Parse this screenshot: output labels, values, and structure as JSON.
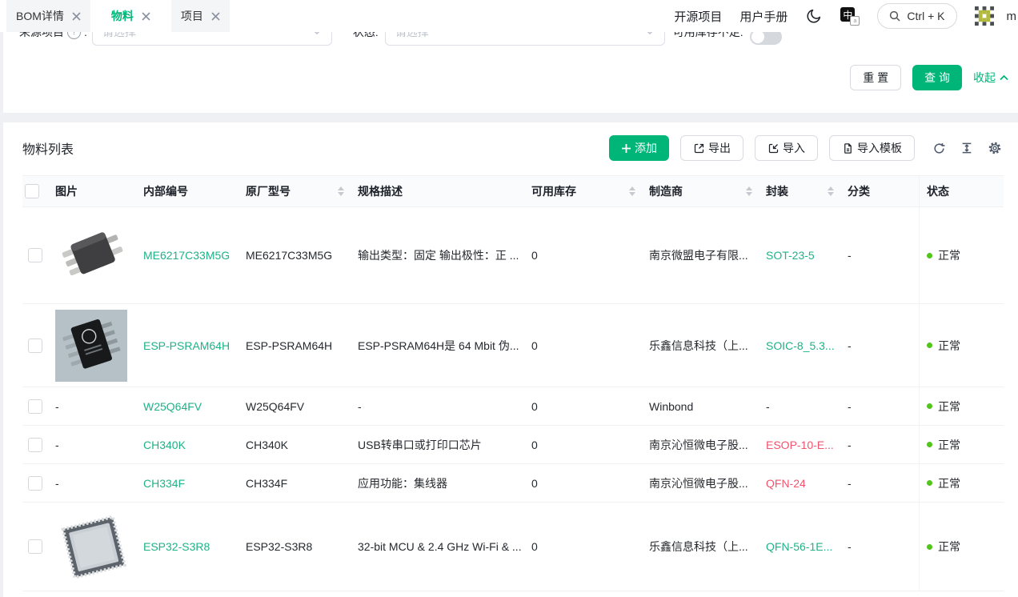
{
  "colors": {
    "brand": "#00b578",
    "link_green": "#1fb287",
    "link_red": "#f2536e",
    "status_ok": "#52c41a"
  },
  "tabs": [
    {
      "label": "BOM详情",
      "active": false
    },
    {
      "label": "物料",
      "active": true
    },
    {
      "label": "项目",
      "active": false
    }
  ],
  "topbar": {
    "links": [
      "开源项目",
      "用户手册"
    ],
    "search_shortcut": "Ctrl + K",
    "username": "m",
    "icons": [
      "moon-icon",
      "language-icon",
      "magnifier-icon",
      "identicon-avatar"
    ]
  },
  "filters": {
    "source_label": "来源项目",
    "source_colon": ":",
    "source_placeholder": "请选择",
    "status_label": "状态:",
    "status_placeholder": "请选择",
    "stock_label": "可用库存不足:",
    "reset_label": "重 置",
    "query_label": "查 询",
    "collapse_label": "收起"
  },
  "list": {
    "title": "物料列表",
    "add_label": "添加",
    "export_label": "导出",
    "import_label": "导入",
    "import_template_label": "导入模板",
    "icon_buttons": [
      "refresh-icon",
      "row-height-icon",
      "gear-icon"
    ]
  },
  "table": {
    "columns": [
      {
        "label": "图片",
        "field": "image",
        "sortable": false
      },
      {
        "label": "内部编号",
        "field": "internal",
        "sortable": false
      },
      {
        "label": "原厂型号",
        "field": "mpn",
        "sortable": true
      },
      {
        "label": "规格描述",
        "field": "spec",
        "sortable": false
      },
      {
        "label": "可用库存",
        "field": "stock",
        "sortable": true
      },
      {
        "label": "制造商",
        "field": "mfr",
        "sortable": true
      },
      {
        "label": "封装",
        "field": "pkg",
        "sortable": true
      },
      {
        "label": "分类",
        "field": "category",
        "sortable": false
      },
      {
        "label": "状态",
        "field": "status",
        "sortable": false
      }
    ],
    "rows": [
      {
        "image": "sot23",
        "internal": "ME6217C33M5G",
        "mpn": "ME6217C33M5G",
        "spec": "输出类型：固定 输出极性：正 ...",
        "stock": "0",
        "mfr": "南京微盟电子有限...",
        "pkg": "SOT-23-5",
        "pkg_color": "green",
        "category": "-",
        "status": "正常"
      },
      {
        "image": "soic8",
        "internal": "ESP-PSRAM64H",
        "mpn": "ESP-PSRAM64H",
        "spec": "ESP-PSRAM64H是 64 Mbit 伪...",
        "stock": "0",
        "mfr": "乐鑫信息科技（上...",
        "pkg": "SOIC-8_5.3...",
        "pkg_color": "green",
        "category": "-",
        "status": "正常"
      },
      {
        "image": "",
        "internal": "W25Q64FV",
        "mpn": "W25Q64FV",
        "spec": "-",
        "stock": "0",
        "mfr": "Winbond",
        "pkg": "-",
        "pkg_color": "plain",
        "category": "-",
        "status": "正常"
      },
      {
        "image": "",
        "internal": "CH340K",
        "mpn": "CH340K",
        "spec": "USB转串口或打印口芯片",
        "stock": "0",
        "mfr": "南京沁恒微电子股...",
        "pkg": "ESOP-10-E...",
        "pkg_color": "red",
        "category": "-",
        "status": "正常"
      },
      {
        "image": "",
        "internal": "CH334F",
        "mpn": "CH334F",
        "spec": "应用功能：集线器",
        "stock": "0",
        "mfr": "南京沁恒微电子股...",
        "pkg": "QFN-24",
        "pkg_color": "red",
        "category": "-",
        "status": "正常"
      },
      {
        "image": "qfn56",
        "internal": "ESP32-S3R8",
        "mpn": "ESP32-S3R8",
        "spec": "32-bit MCU & 2.4 GHz Wi-Fi & ...",
        "stock": "0",
        "mfr": "乐鑫信息科技（上...",
        "pkg": "QFN-56-1E...",
        "pkg_color": "green",
        "category": "-",
        "status": "正常"
      }
    ]
  }
}
